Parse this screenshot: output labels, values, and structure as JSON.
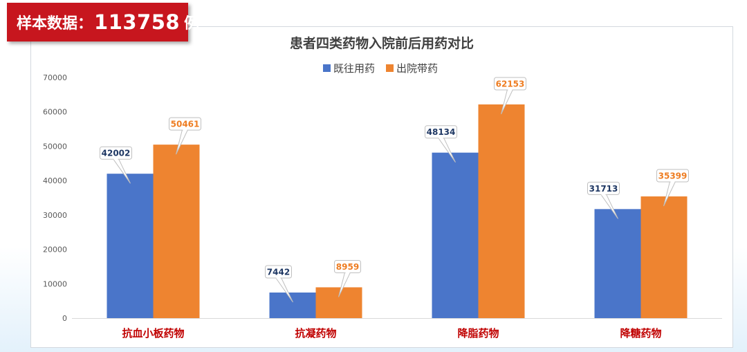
{
  "badge": {
    "label": "样本数据：",
    "count": "113758",
    "unit": "例"
  },
  "colors": {
    "badge_bg": "#c7161e",
    "series_1": "#4a75c9",
    "series_2": "#ee8430",
    "category_label": "#c00000",
    "value_label_1": "#1f3864",
    "value_label_2": "#ee7d22"
  },
  "chart_data": {
    "type": "bar",
    "title": "患者四类药物入院前后用药对比",
    "categories": [
      "抗血小板药物",
      "抗凝药物",
      "降脂药物",
      "降糖药物"
    ],
    "series": [
      {
        "name": "既往用药",
        "values": [
          42002,
          7442,
          48134,
          31713
        ]
      },
      {
        "name": "出院带药",
        "values": [
          50461,
          8959,
          62153,
          35399
        ]
      }
    ],
    "ylim": [
      0,
      70000
    ],
    "yticks": [
      0,
      10000,
      20000,
      30000,
      40000,
      50000,
      60000,
      70000
    ],
    "grid": false,
    "legend_position": "top-center",
    "data_labels": "callout"
  }
}
